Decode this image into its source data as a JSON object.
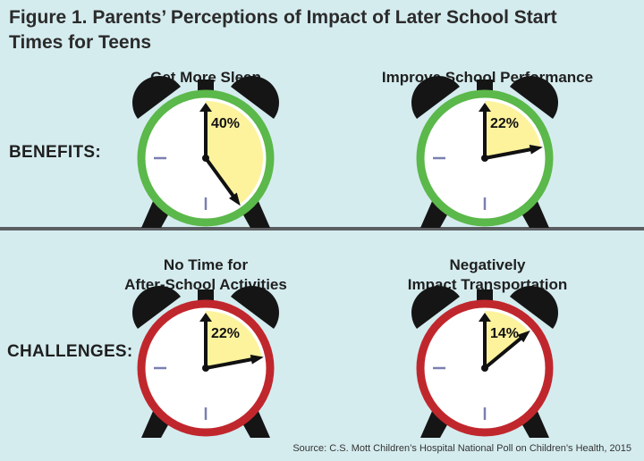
{
  "title": "Figure 1. Parents’ Perceptions of Impact of Later School Start Times for Teens",
  "colors": {
    "background": "#d5ecef",
    "benefit_ring": "#5bb84a",
    "challenge_ring": "#c0272d",
    "wedge": "#fdf39d",
    "bell": "#151515",
    "face": "#ffffff",
    "tick": "#7b7fb0"
  },
  "rows": [
    {
      "label": "BENEFITS:"
    },
    {
      "label": "CHALLENGES:"
    }
  ],
  "chart_data": {
    "type": "pie",
    "title": "Figure 1. Parents’ Perceptions of Impact of Later School Start Times for Teens",
    "unit": "%",
    "items": [
      {
        "group": "BENEFITS:",
        "caption": "Get More Sleep",
        "value": 40,
        "label": "40%"
      },
      {
        "group": "BENEFITS:",
        "caption": "Improve School Performance",
        "value": 22,
        "label": "22%"
      },
      {
        "group": "CHALLENGES:",
        "caption": "No Time for\nAfter-School Activities",
        "value": 22,
        "label": "22%"
      },
      {
        "group": "CHALLENGES:",
        "caption": "Negatively\nImpact Transportation",
        "value": 14,
        "label": "14%"
      }
    ]
  },
  "source": "Source: C.S. Mott Children’s Hospital National Poll on Children’s Health, 2015"
}
